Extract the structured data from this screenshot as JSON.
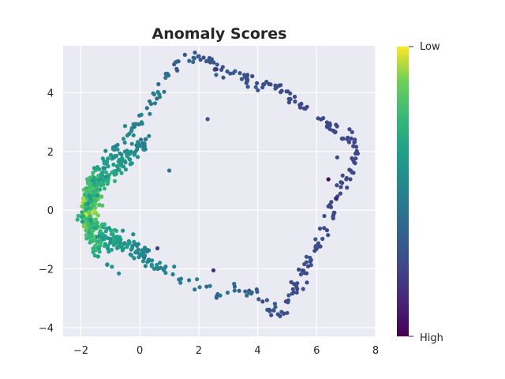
{
  "chart_data": {
    "type": "scatter",
    "title": "Anomaly Scores",
    "xlabel": "",
    "ylabel": "",
    "xlim": [
      -2.6,
      8.0
    ],
    "ylim": [
      -4.3,
      5.6
    ],
    "xticks": [
      "−2",
      "0",
      "2",
      "4",
      "6",
      "8"
    ],
    "xtick_values": [
      -2,
      0,
      2,
      4,
      6,
      8
    ],
    "yticks": [
      "−4",
      "−2",
      "0",
      "2",
      "4"
    ],
    "ytick_values": [
      -4,
      -2,
      0,
      2,
      4
    ],
    "grid": true,
    "background": "#eaeaf2",
    "colormap": "viridis",
    "colorbar": {
      "top_label": "Low",
      "bottom_label": "High"
    },
    "anomaly_points": [
      {
        "x": 2.6,
        "y": 4.8,
        "score": 0.85
      },
      {
        "x": 2.3,
        "y": 3.1,
        "score": 0.7
      },
      {
        "x": 0.6,
        "y": -1.3,
        "score": 0.8
      },
      {
        "x": 2.5,
        "y": -2.05,
        "score": 0.85
      },
      {
        "x": 6.4,
        "y": 1.05,
        "score": 0.97
      },
      {
        "x": 6.65,
        "y": 0.4,
        "score": 0.9
      },
      {
        "x": 6.7,
        "y": 1.8,
        "score": 0.75
      },
      {
        "x": 5.0,
        "y": -3.5,
        "score": 0.7
      },
      {
        "x": 4.6,
        "y": -3.3,
        "score": 0.65
      },
      {
        "x": 1.0,
        "y": 1.35,
        "score": 0.55
      }
    ],
    "point_count": 850
  }
}
